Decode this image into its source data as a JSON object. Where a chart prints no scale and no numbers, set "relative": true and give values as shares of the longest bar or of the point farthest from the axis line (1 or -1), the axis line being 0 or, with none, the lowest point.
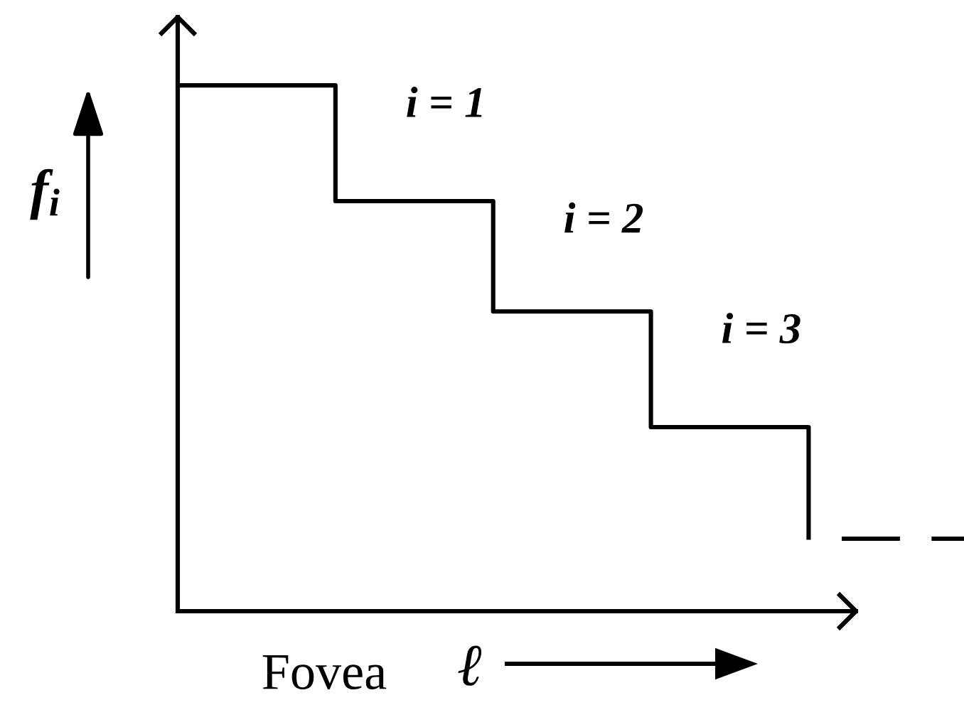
{
  "chart_data": {
    "type": "step",
    "relative": true,
    "categories": [
      null,
      null,
      null,
      null,
      null
    ],
    "values": [
      1,
      0.78,
      0.57,
      0.35,
      0.14
    ],
    "color": "#000000",
    "xlabel": "ℓ",
    "ylabel": "f$_{i}$",
    "annotations": [
      "i = 1",
      "i = 2",
      "i = 3",
      "Fovea"
    ],
    "marker": "none"
  }
}
